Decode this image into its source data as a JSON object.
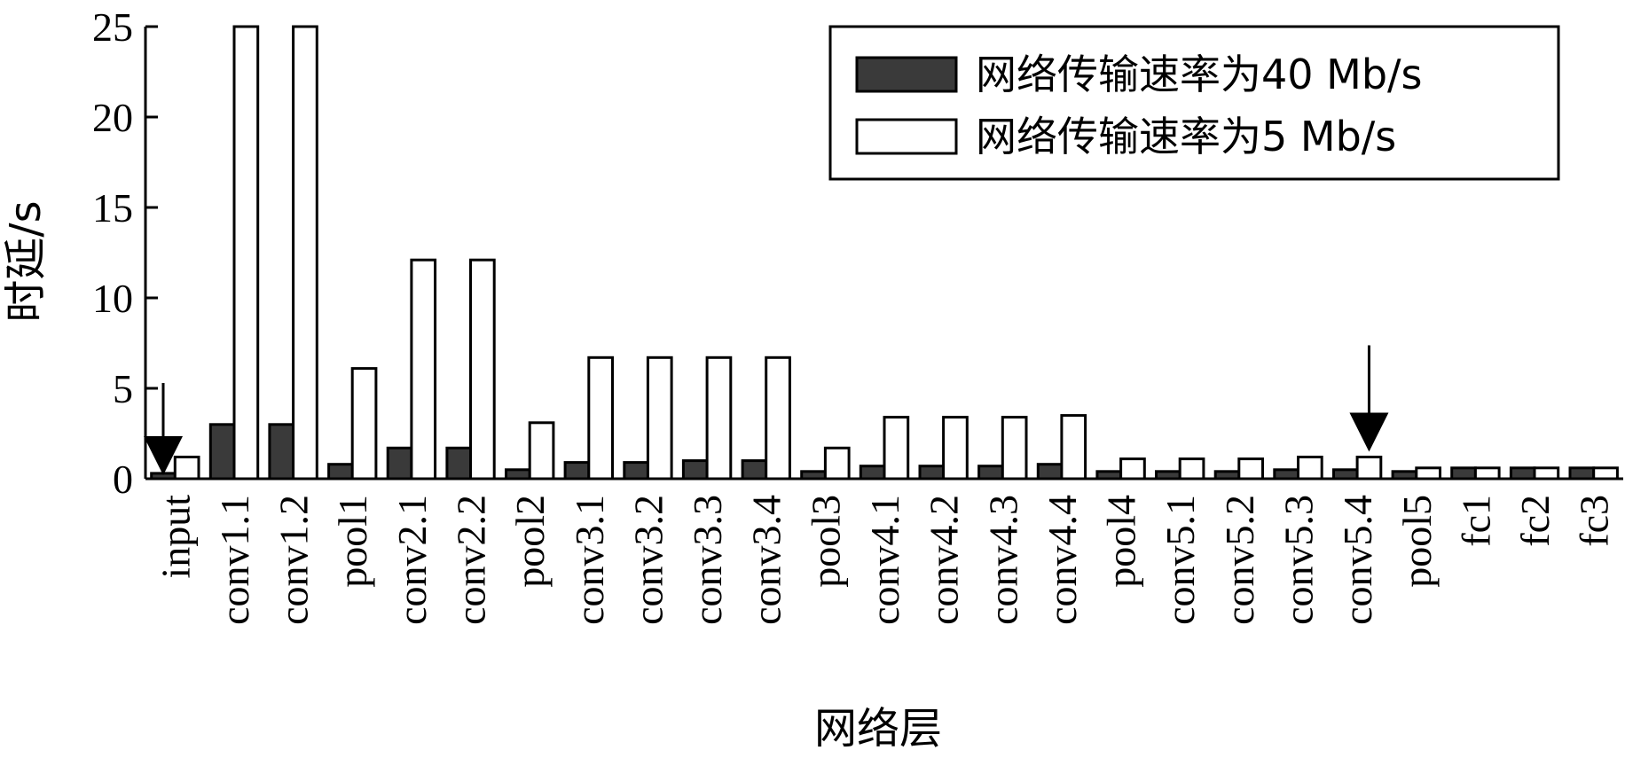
{
  "chart_data": {
    "type": "bar",
    "xlabel": "网络层",
    "ylabel": "时延/s",
    "ylim": [
      0,
      25
    ],
    "yticks": [
      0,
      5,
      10,
      15,
      20,
      25
    ],
    "categories": [
      "input",
      "conv1.1",
      "conv1.2",
      "pool1",
      "conv2.1",
      "conv2.2",
      "pool2",
      "conv3.1",
      "conv3.2",
      "conv3.3",
      "conv3.4",
      "pool3",
      "conv4.1",
      "conv4.2",
      "conv4.3",
      "conv4.4",
      "pool4",
      "conv5.1",
      "conv5.2",
      "conv5.3",
      "conv5.4",
      "pool5",
      "fc1",
      "fc2",
      "fc3"
    ],
    "series": [
      {
        "name": "网络传输速率为40 Mb/s",
        "color": "#3a3a3a",
        "values": [
          0.3,
          3.0,
          3.0,
          0.8,
          1.7,
          1.7,
          0.5,
          0.9,
          0.9,
          1.0,
          1.0,
          0.4,
          0.7,
          0.7,
          0.7,
          0.8,
          0.4,
          0.4,
          0.4,
          0.5,
          0.5,
          0.4,
          0.6,
          0.6,
          0.6
        ]
      },
      {
        "name": "网络传输速率为5 Mb/s",
        "color": "#ffffff",
        "values": [
          1.2,
          25.0,
          25.0,
          6.1,
          12.1,
          12.1,
          3.1,
          6.7,
          6.7,
          6.7,
          6.7,
          1.7,
          3.4,
          3.4,
          3.4,
          3.5,
          1.1,
          1.1,
          1.1,
          1.2,
          1.2,
          0.6,
          0.6,
          0.6,
          0.6
        ]
      }
    ],
    "legend_position": "top-right",
    "grid": false,
    "annotations": [
      {
        "type": "arrow",
        "category": "input",
        "direction": "down"
      },
      {
        "type": "arrow",
        "category": "conv5.4",
        "direction": "down"
      }
    ]
  }
}
